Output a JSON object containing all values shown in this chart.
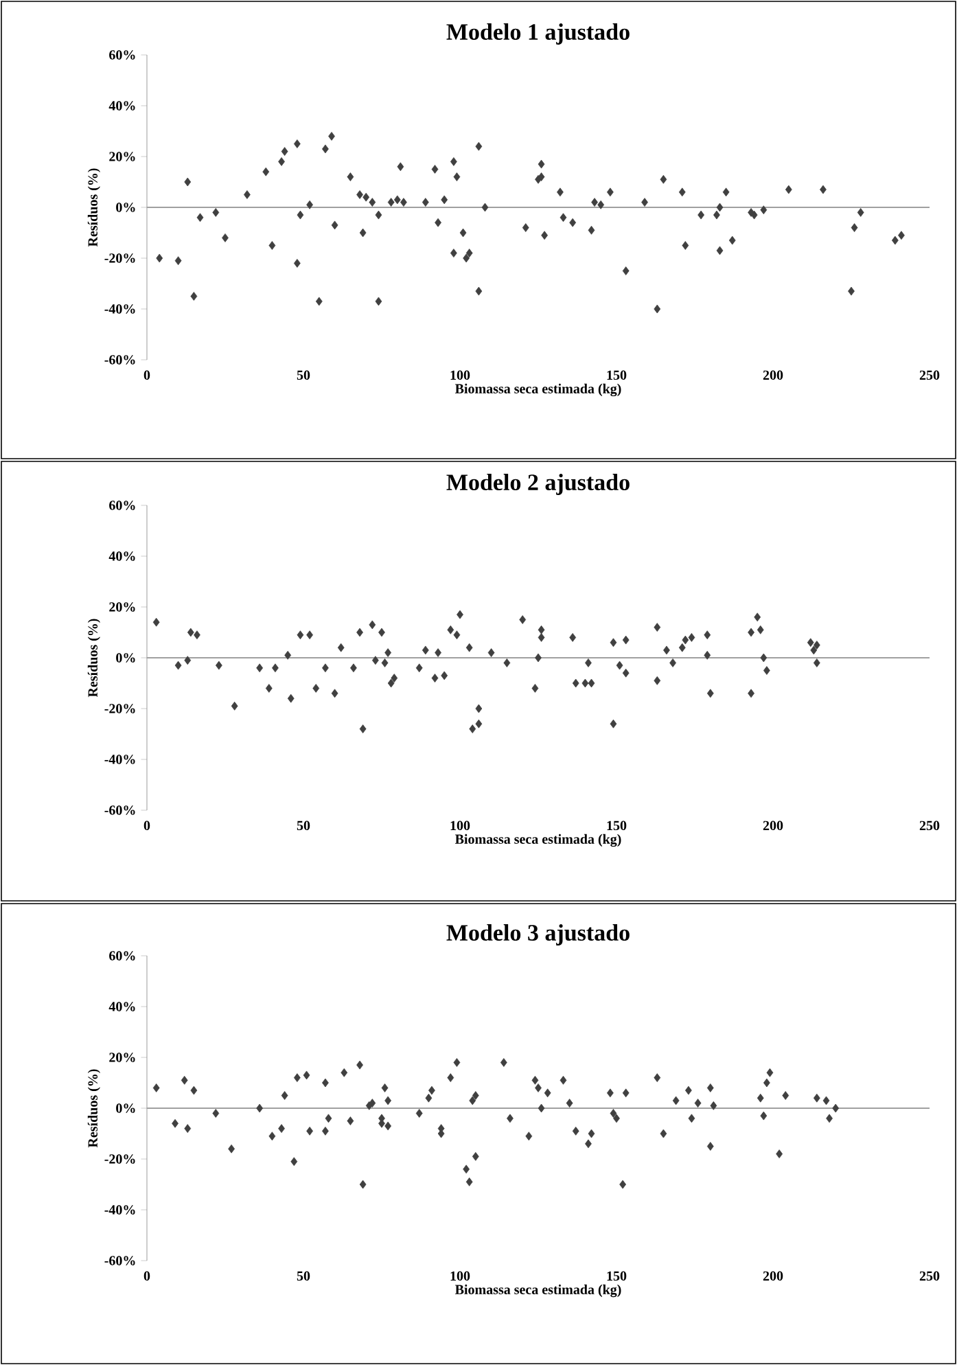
{
  "chart_data": [
    {
      "type": "scatter",
      "title": "Modelo 1 ajustado",
      "xlabel": "Biomassa seca estimada (kg)",
      "ylabel": "Resíduos (%)",
      "xlim": [
        0,
        250
      ],
      "xticks": [
        0,
        50,
        100,
        150,
        200,
        250
      ],
      "ylim": [
        -60,
        60
      ],
      "yticks": [
        {
          "value": -60,
          "label": "-60%"
        },
        {
          "value": -40,
          "label": "-40%"
        },
        {
          "value": -20,
          "label": "-20%"
        },
        {
          "value": 0,
          "label": "0%"
        },
        {
          "value": 20,
          "label": "20%"
        },
        {
          "value": 40,
          "label": "40%"
        },
        {
          "value": 60,
          "label": "60%"
        }
      ],
      "marker": "diamond",
      "ref_lines": [
        {
          "axis": "y",
          "value": 0,
          "color": "#a0a0a0"
        }
      ],
      "series": [
        {
          "color": "#404040",
          "x": [
            4,
            10,
            13,
            15,
            17,
            22,
            25,
            32,
            38,
            40,
            43,
            44,
            48,
            48,
            49,
            52,
            55,
            57,
            59,
            60,
            65,
            68,
            69,
            70,
            72,
            74,
            74,
            78,
            80,
            81,
            82,
            89,
            92,
            93,
            95,
            98,
            98,
            99,
            101,
            102,
            103,
            106,
            106,
            108,
            121,
            125,
            126,
            126,
            127,
            132,
            133,
            136,
            142,
            143,
            145,
            148,
            153,
            159,
            163,
            165,
            171,
            172,
            177,
            182,
            183,
            183,
            185,
            187,
            193,
            194,
            197,
            205,
            216,
            225,
            226,
            228,
            239,
            241
          ],
          "values": [
            -20,
            -21,
            10,
            -35,
            -4,
            -2,
            -12,
            5,
            14,
            -15,
            18,
            22,
            25,
            -22,
            -3,
            1,
            -37,
            23,
            28,
            -7,
            12,
            5,
            -10,
            4,
            2,
            -37,
            -3,
            2,
            3,
            16,
            2,
            2,
            15,
            -6,
            3,
            18,
            -18,
            12,
            -10,
            -20,
            -18,
            24,
            -33,
            0,
            -8,
            11,
            12,
            17,
            -11,
            6,
            -4,
            -6,
            -9,
            2,
            1,
            6,
            -25,
            2,
            -40,
            11,
            6,
            -15,
            -3,
            -3,
            0,
            -17,
            6,
            -13,
            -2,
            -3,
            -1,
            7,
            7,
            -33,
            -8,
            -2,
            -13,
            -11
          ]
        }
      ]
    },
    {
      "type": "scatter",
      "title": "Modelo 2 ajustado",
      "xlabel": "Biomassa seca estimada (kg)",
      "ylabel": "Resíduos (%)",
      "xlim": [
        0,
        250
      ],
      "xticks": [
        0,
        50,
        100,
        150,
        200,
        250
      ],
      "ylim": [
        -60,
        60
      ],
      "yticks": [
        {
          "value": -60,
          "label": "-60%"
        },
        {
          "value": -40,
          "label": "-40%"
        },
        {
          "value": -20,
          "label": "-20%"
        },
        {
          "value": 0,
          "label": "0%"
        },
        {
          "value": 20,
          "label": "20%"
        },
        {
          "value": 40,
          "label": "40%"
        },
        {
          "value": 60,
          "label": "60%"
        }
      ],
      "marker": "diamond",
      "ref_lines": [
        {
          "axis": "y",
          "value": 0,
          "color": "#a0a0a0"
        }
      ],
      "series": [
        {
          "color": "#404040",
          "x": [
            3,
            10,
            13,
            14,
            16,
            23,
            28,
            36,
            39,
            41,
            45,
            46,
            49,
            52,
            54,
            57,
            60,
            62,
            66,
            68,
            69,
            72,
            73,
            75,
            76,
            77,
            78,
            79,
            87,
            89,
            92,
            93,
            95,
            97,
            99,
            100,
            103,
            104,
            106,
            106,
            110,
            115,
            120,
            124,
            125,
            126,
            126,
            136,
            137,
            140,
            141,
            142,
            149,
            149,
            151,
            153,
            153,
            163,
            163,
            166,
            168,
            171,
            172,
            174,
            179,
            179,
            180,
            193,
            193,
            195,
            196,
            197,
            198,
            212,
            213,
            214,
            214
          ],
          "values": [
            14,
            -3,
            -1,
            10,
            9,
            -3,
            -19,
            -4,
            -12,
            -4,
            1,
            -16,
            9,
            9,
            -12,
            -4,
            -14,
            4,
            -4,
            10,
            -28,
            13,
            -1,
            10,
            -2,
            2,
            -10,
            -8,
            -4,
            3,
            -8,
            2,
            -7,
            11,
            9,
            17,
            4,
            -28,
            -26,
            -20,
            2,
            -2,
            15,
            -12,
            0,
            11,
            8,
            8,
            -10,
            -10,
            -2,
            -10,
            -26,
            6,
            -3,
            7,
            -6,
            12,
            -9,
            3,
            -2,
            4,
            7,
            8,
            9,
            1,
            -14,
            10,
            -14,
            16,
            11,
            0,
            -5,
            6,
            3,
            5,
            -2
          ]
        }
      ]
    },
    {
      "type": "scatter",
      "title": "Modelo 3 ajustado",
      "xlabel": "Biomassa seca estimada (kg)",
      "ylabel": "Resíduos (%)",
      "xlim": [
        0,
        250
      ],
      "xticks": [
        0,
        50,
        100,
        150,
        200,
        250
      ],
      "ylim": [
        -60,
        60
      ],
      "yticks": [
        {
          "value": -60,
          "label": "-60%"
        },
        {
          "value": -40,
          "label": "-40%"
        },
        {
          "value": -20,
          "label": "-20%"
        },
        {
          "value": 0,
          "label": "0%"
        },
        {
          "value": 20,
          "label": "20%"
        },
        {
          "value": 40,
          "label": "40%"
        },
        {
          "value": 60,
          "label": "60%"
        }
      ],
      "marker": "diamond",
      "ref_lines": [
        {
          "axis": "y",
          "value": 0,
          "color": "#a0a0a0"
        }
      ],
      "series": [
        {
          "color": "#404040",
          "x": [
            3,
            9,
            13,
            12,
            15,
            22,
            27,
            36,
            40,
            43,
            44,
            47,
            48,
            51,
            52,
            57,
            57,
            58,
            63,
            65,
            68,
            69,
            71,
            72,
            75,
            75,
            76,
            77,
            77,
            87,
            90,
            91,
            94,
            94,
            97,
            99,
            102,
            103,
            104,
            105,
            105,
            114,
            116,
            122,
            124,
            125,
            126,
            128,
            133,
            135,
            137,
            141,
            142,
            148,
            149,
            150,
            152,
            153,
            163,
            165,
            169,
            173,
            174,
            176,
            180,
            180,
            181,
            196,
            197,
            198,
            199,
            202,
            204,
            214,
            217,
            218,
            220
          ],
          "values": [
            8,
            -6,
            -8,
            11,
            7,
            -2,
            -16,
            0,
            -11,
            -8,
            5,
            -21,
            12,
            13,
            -9,
            -9,
            10,
            -4,
            14,
            -5,
            17,
            -30,
            1,
            2,
            -4,
            -6,
            8,
            -7,
            3,
            -2,
            4,
            7,
            -10,
            -8,
            12,
            18,
            -24,
            -29,
            3,
            -19,
            5,
            18,
            -4,
            -11,
            11,
            8,
            0,
            6,
            11,
            2,
            -9,
            -14,
            -10,
            6,
            -2,
            -4,
            -30,
            6,
            12,
            -10,
            3,
            7,
            -4,
            2,
            -15,
            8,
            1,
            4,
            -3,
            10,
            14,
            -18,
            5,
            4,
            3,
            -4,
            0
          ]
        }
      ]
    }
  ]
}
